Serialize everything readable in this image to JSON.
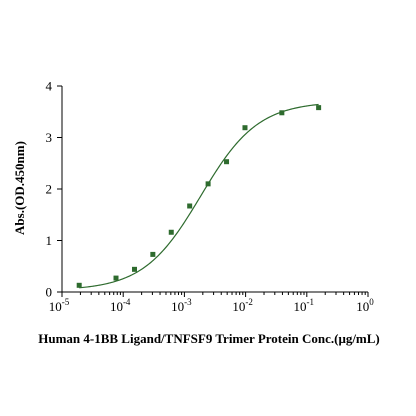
{
  "chart_data": {
    "type": "scatter",
    "xlabel": "Human 4-1BB Ligand/TNFSF9 Trimer Protein Conc.(μg/mL)",
    "ylabel": "Abs.(OD.450nm)",
    "x_scale": "log",
    "xlim": [
      1e-05,
      1
    ],
    "ylim": [
      0,
      4
    ],
    "y_ticks": [
      "0",
      "1",
      "2",
      "3",
      "4"
    ],
    "x_ticks": [
      {
        "base": "10",
        "exp": "-5"
      },
      {
        "base": "10",
        "exp": "-4"
      },
      {
        "base": "10",
        "exp": "-3"
      },
      {
        "base": "10",
        "exp": "-2"
      },
      {
        "base": "10",
        "exp": "-1"
      },
      {
        "base": "10",
        "exp": "0"
      }
    ],
    "series": [
      {
        "x": [
          1.91e-05,
          7.63e-05,
          0.000153,
          0.000305,
          0.00061,
          0.00122,
          0.00244,
          0.00488,
          0.00977,
          0.0391,
          0.156
        ],
        "y": [
          0.13,
          0.27,
          0.44,
          0.73,
          1.16,
          1.67,
          2.1,
          2.53,
          3.19,
          3.48,
          3.58
        ],
        "fit": "4PL"
      }
    ],
    "colors": {
      "series": "#2e6b2e",
      "axis": "#000000"
    }
  }
}
